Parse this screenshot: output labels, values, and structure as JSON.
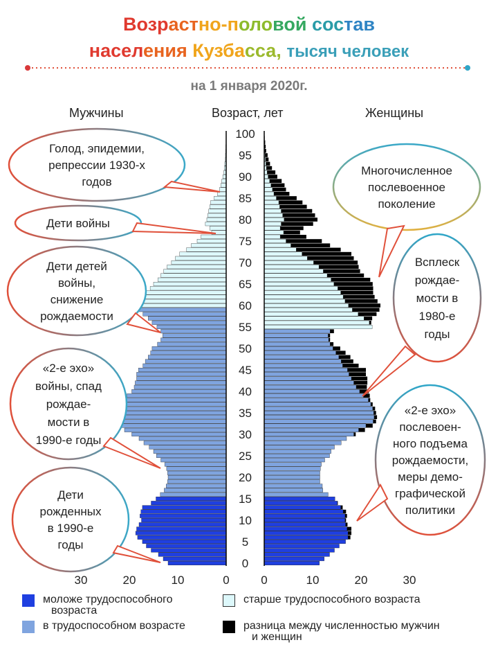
{
  "title_line1": "Возрастно-половой состав",
  "title_line2_main": "населения Кузбасса,",
  "title_line2_small": "тысяч человек",
  "subtitle": "на 1 января 2020г.",
  "colors": {
    "young": "#1f3fe0",
    "working": "#7fa4df",
    "old": "#ddf8fb",
    "diff": "#000000",
    "bubble_grad_a": "#e0503a",
    "bubble_grad_b": "#3aa8c8"
  },
  "headers": {
    "men": "Мужчины",
    "age": "Возраст, лет",
    "women": "Женщины"
  },
  "annotations": [
    {
      "id": "hunger",
      "text": [
        "Голод, эпидемии,",
        "репрессии 1930-х",
        "годов"
      ]
    },
    {
      "id": "war-kids",
      "text": [
        "Дети войны"
      ]
    },
    {
      "id": "war-grandkids",
      "text": [
        "Дети детей",
        "войны,",
        "снижение",
        "рождаемости"
      ]
    },
    {
      "id": "echo2-men",
      "text": [
        "«2-е эхо»",
        "войны, спад",
        "рождае-",
        "мости в",
        "1990-е годы"
      ]
    },
    {
      "id": "born90",
      "text": [
        "Дети",
        "рожденных",
        "в 1990-е",
        "годы"
      ]
    },
    {
      "id": "postwar",
      "text": [
        "Многочисленное",
        "послевоенное",
        "поколение"
      ]
    },
    {
      "id": "boom80",
      "text": [
        "Всплеск",
        "рождае-",
        "мости в",
        "1980-е",
        "годы"
      ]
    },
    {
      "id": "echo2-women",
      "text": [
        "«2-е эхо»",
        "послевоен-",
        "ного подъема",
        "рождаемости,",
        "меры демо-",
        "графической",
        "политики"
      ]
    }
  ],
  "legend": [
    {
      "key": "young",
      "text": [
        "моложе трудоспособного",
        "возраста"
      ]
    },
    {
      "key": "old",
      "text": [
        "старше трудоспособного возраста"
      ]
    },
    {
      "key": "working",
      "text": [
        "в трудоспособном возрасте"
      ]
    },
    {
      "key": "diff",
      "text": [
        "разница между численностью мужчин",
        "и женщин"
      ]
    }
  ],
  "chart_data": {
    "type": "bar",
    "orientation": "horizontal-pyramid",
    "age_label": "Возраст, лет",
    "age_ticks": [
      0,
      5,
      10,
      15,
      20,
      25,
      30,
      35,
      40,
      45,
      50,
      55,
      60,
      65,
      70,
      75,
      80,
      85,
      90,
      95,
      100
    ],
    "x_ticks_men": [
      30,
      20,
      10,
      0
    ],
    "x_ticks_women": [
      0,
      10,
      20,
      30
    ],
    "xlim": [
      0,
      30
    ],
    "ylim": [
      0,
      100
    ],
    "working_age_men": [
      16,
      59
    ],
    "working_age_women": [
      16,
      54
    ],
    "ages": [
      0,
      1,
      2,
      3,
      4,
      5,
      6,
      7,
      8,
      9,
      10,
      11,
      12,
      13,
      14,
      15,
      16,
      17,
      18,
      19,
      20,
      21,
      22,
      23,
      24,
      25,
      26,
      27,
      28,
      29,
      30,
      31,
      32,
      33,
      34,
      35,
      36,
      37,
      38,
      39,
      40,
      41,
      42,
      43,
      44,
      45,
      46,
      47,
      48,
      49,
      50,
      51,
      52,
      53,
      54,
      55,
      56,
      57,
      58,
      59,
      60,
      61,
      62,
      63,
      64,
      65,
      66,
      67,
      68,
      69,
      70,
      71,
      72,
      73,
      74,
      75,
      76,
      77,
      78,
      79,
      80,
      81,
      82,
      83,
      84,
      85,
      86,
      87,
      88,
      89,
      90,
      91,
      92,
      93,
      94,
      95,
      96,
      97,
      98,
      99,
      100
    ],
    "series": [
      {
        "name": "Мужчины",
        "values": [
          12,
          13,
          14,
          15.5,
          16.5,
          17.3,
          18.3,
          18.7,
          18.5,
          18,
          17.5,
          17.8,
          17.6,
          17.3,
          15.5,
          14.5,
          13.6,
          12.8,
          12.4,
          12.1,
          12,
          12.1,
          12.3,
          12.7,
          13.5,
          14.4,
          15,
          15.9,
          17,
          18,
          19.5,
          21,
          22.5,
          23.5,
          23.2,
          22.8,
          22.5,
          22,
          21.5,
          20.5,
          19.5,
          19,
          18.8,
          18.5,
          18.5,
          18.1,
          17.2,
          16.7,
          16.1,
          15.6,
          15.3,
          14.2,
          13.5,
          13.1,
          13.5,
          14.3,
          15.3,
          16.1,
          17.2,
          18.1,
          18.8,
          18.7,
          17.7,
          16.5,
          15.7,
          15,
          14.1,
          13.5,
          12.9,
          12.2,
          11.3,
          10.5,
          9.6,
          8.2,
          7.2,
          6,
          5.2,
          3,
          3.4,
          4.3,
          4,
          3.8,
          3.6,
          3.4,
          3.2,
          2.5,
          1.8,
          1.4,
          1.1,
          0.9,
          0.7,
          0.5,
          0.4,
          0.3,
          0.2,
          0.15,
          0.1,
          0.08,
          0.05,
          0.03,
          0.02
        ]
      },
      {
        "name": "Женщины",
        "values": [
          11.4,
          12.4,
          13.5,
          14.5,
          15.5,
          16.8,
          17.3,
          17.3,
          17.1,
          16.8,
          16.7,
          16.7,
          16.3,
          15.8,
          15.1,
          14.6,
          13.2,
          12.1,
          12,
          11.5,
          11.5,
          11.5,
          11.6,
          11.8,
          12.5,
          13.5,
          13.8,
          14.5,
          15.9,
          17,
          18.5,
          19.5,
          21,
          22.5,
          22.7,
          22.6,
          22.4,
          22,
          21.5,
          20.5,
          19.7,
          19,
          18.5,
          18,
          17.5,
          17.2,
          16.2,
          15.9,
          15.4,
          14.8,
          14.2,
          13.6,
          13.3,
          13.2,
          13.6,
          22.3,
          21.7,
          20.6,
          19.4,
          18.2,
          17.4,
          16.7,
          16.3,
          15.8,
          15.2,
          14.4,
          13.8,
          13,
          12.2,
          11.3,
          10.2,
          8.9,
          7.8,
          6.6,
          5.5,
          4.5,
          3.3,
          4,
          3.3,
          3.5,
          4.1,
          3.8,
          3.5,
          3.2,
          3,
          2.5,
          2,
          1.7,
          1.4,
          1.1,
          0.8,
          0.6,
          0.45,
          0.35,
          0.25,
          0.18,
          0.12,
          0.08,
          0.05,
          0.03,
          0.02
        ]
      },
      {
        "name": "разница",
        "values": [
          0,
          0,
          0,
          0,
          0,
          0,
          0,
          0,
          0,
          0,
          0,
          0,
          0,
          0,
          0,
          0,
          0,
          0,
          0,
          0,
          0,
          0,
          0,
          0,
          0,
          0,
          0,
          0,
          0,
          0,
          0,
          0,
          0,
          0,
          0,
          0,
          0,
          0,
          0,
          0,
          0,
          0,
          0,
          0,
          0,
          0,
          0,
          0,
          0,
          0,
          0,
          0,
          0,
          0,
          0,
          0,
          0,
          0,
          0,
          0,
          0,
          0,
          0,
          0,
          0,
          0,
          0,
          0,
          0,
          0,
          0,
          0,
          0,
          0,
          0,
          0,
          0,
          0,
          0,
          0,
          0,
          0,
          0,
          0,
          0,
          0,
          0,
          0,
          0,
          0,
          0,
          0,
          0,
          0,
          0,
          0,
          0,
          0,
          0,
          0,
          0
        ]
      },
      {
        "name": "Женщины всего",
        "values": [
          11.4,
          12.4,
          13.5,
          14.5,
          15.5,
          16.8,
          17.8,
          18,
          18,
          17.2,
          16.9,
          17.1,
          16.9,
          16.2,
          15.2,
          14.6,
          13.2,
          12.1,
          12,
          11.5,
          11.5,
          11.5,
          11.6,
          11.8,
          12.5,
          13.5,
          13.8,
          14.5,
          15.9,
          17,
          18.9,
          20.8,
          22.4,
          23.1,
          23.3,
          23.1,
          22.9,
          22.4,
          21.9,
          21.8,
          21.6,
          21.2,
          21.3,
          21.3,
          21,
          21,
          19.5,
          18.4,
          17.8,
          16.8,
          15.7,
          14.3,
          13.6,
          13.6,
          14.4,
          22.3,
          22.1,
          22.3,
          23.2,
          23.8,
          24,
          23.4,
          22.8,
          22.5,
          22.5,
          22.4,
          21.9,
          20.6,
          19.8,
          19.5,
          19.3,
          18.5,
          18,
          15.8,
          13.6,
          11.9,
          8.7,
          7.4,
          8.1,
          10.1,
          11,
          10.5,
          9.9,
          8.8,
          7.9,
          6.7,
          5.2,
          4.5,
          4.2,
          3.6,
          2.7,
          2.3,
          1.6,
          1.2,
          0.9,
          0.7,
          0.4,
          0.3,
          0.2,
          0.1,
          0.05
        ]
      }
    ]
  }
}
